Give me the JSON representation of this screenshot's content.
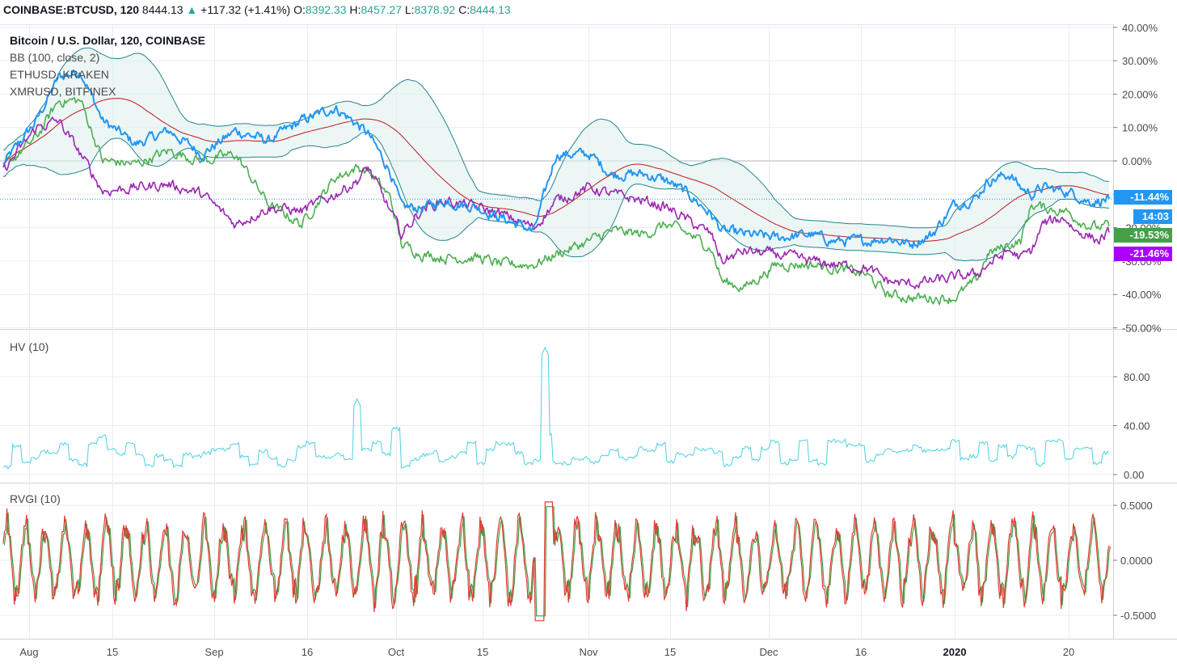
{
  "header": {
    "symbol": "COINBASE:BTCUSD, 120",
    "last": "8444.13",
    "up_arrow": "▲",
    "change": "+117.32 (+1.41%)",
    "open_label": "O:",
    "open": "8392.33",
    "high_label": "H:",
    "high": "8457.27",
    "low_label": "L:",
    "low": "8378.92",
    "close_label": "C:",
    "close": "8444.13"
  },
  "main_legend": {
    "title": "Bitcoin / U.S. Dollar, 120, COINBASE",
    "lines": [
      "BB (100, close, 2)",
      "ETHUSD, KRAKEN",
      "XMRUSD, BITFINEX"
    ]
  },
  "hv_legend": "HV (10)",
  "rvgi_legend": "RVGI (10)",
  "price_tags": [
    {
      "label": "-11.44%",
      "color": "#2196f3"
    },
    {
      "label": "14:03",
      "color": "#2196f3"
    },
    {
      "label": "-19.53%",
      "color": "#43a047"
    },
    {
      "label": "-21.46%",
      "color": "#aa00ff"
    }
  ],
  "colors": {
    "btc": "#2196f3",
    "eth": "#4caf50",
    "xmr": "#9c27b0",
    "bb_basis": "#b71c1c",
    "bb_band": "#22848c",
    "bb_fill": "#dff0ef",
    "hv": "#4dd0e1",
    "rvgi": "#e53935",
    "rvgi_signal": "#43a047",
    "grid": "#e9ecf1",
    "axis_text": "#4a4a4a"
  },
  "chart_data": [
    {
      "type": "line",
      "title": "Bitcoin / U.S. Dollar, 120, COINBASE",
      "unit": "%",
      "ylim": [
        -50,
        40
      ],
      "yticks": [
        "40.00%",
        "30.00%",
        "20.00%",
        "10.00%",
        "0.00%",
        "-10.00%",
        "-20.00%",
        "-30.00%",
        "-40.00%",
        "-50.00%"
      ],
      "x_ticks": [
        "Aug",
        "15",
        "Sep",
        "16",
        "Oct",
        "15",
        "Nov",
        "15",
        "Dec",
        "16",
        "2020",
        "20"
      ],
      "x_range": [
        0,
        100
      ],
      "x": [
        0,
        3,
        5,
        7,
        9,
        12,
        15,
        18,
        21,
        24,
        27,
        30,
        32,
        33,
        35,
        36,
        38,
        40,
        43,
        45,
        48,
        50,
        53,
        55,
        58,
        60,
        62,
        64,
        65,
        67,
        70,
        73,
        75,
        78,
        80,
        82,
        84,
        86,
        88,
        89,
        91,
        92,
        93,
        94,
        96,
        97,
        98,
        99,
        100
      ],
      "series": [
        {
          "name": "Bitcoin / U.S. Dollar",
          "color_key": "btc",
          "values": [
            -1,
            12,
            25,
            27,
            12,
            5,
            9,
            2,
            9,
            6,
            12,
            16,
            11,
            8,
            -3,
            -14,
            -14,
            -12,
            -14,
            -17,
            -21,
            2,
            2,
            -4,
            -4,
            -6,
            -10,
            -16,
            -21,
            -22,
            -23,
            -22,
            -24,
            -24,
            -23,
            -25,
            -22,
            -13,
            -11,
            -6,
            -4,
            -8,
            -10,
            -8,
            -9,
            -10,
            -12,
            -12,
            -11.44
          ]
        },
        {
          "name": "ETHUSD, KRAKEN",
          "color_key": "eth",
          "values": [
            -2,
            7,
            18,
            18,
            0,
            -1,
            3,
            0,
            2,
            -13,
            -19,
            -5,
            -2,
            -3,
            -11,
            -25,
            -28,
            -29,
            -29,
            -31,
            -31,
            -28,
            -24,
            -21,
            -22,
            -19,
            -22,
            -26,
            -36,
            -38,
            -31,
            -31,
            -32,
            -34,
            -40,
            -41,
            -41,
            -41,
            -36,
            -28,
            -25,
            -24,
            -13,
            -14,
            -15,
            -17,
            -19,
            -20,
            -19.53
          ]
        },
        {
          "name": "XMRUSD, BITFINEX",
          "color_key": "xmr",
          "values": [
            -3,
            10,
            12,
            2,
            -9,
            -8,
            -7,
            -10,
            -19,
            -14,
            -15,
            -10,
            -6,
            -2,
            -15,
            -22,
            -14,
            -12,
            -14,
            -16,
            -20,
            -12,
            -8,
            -10,
            -12,
            -14,
            -18,
            -22,
            -30,
            -27,
            -28,
            -30,
            -31,
            -32,
            -36,
            -37,
            -36,
            -35,
            -34,
            -31,
            -27,
            -29,
            -27,
            -19,
            -17,
            -21,
            -22,
            -24,
            -21.46
          ]
        }
      ]
    },
    {
      "type": "line",
      "title": "HV (10)",
      "ylim": [
        0,
        100
      ],
      "yticks": [
        "80.00",
        "40.00",
        "0.00"
      ],
      "peaks": [
        {
          "x": 32,
          "value": 62
        },
        {
          "x": 49,
          "value": 104
        }
      ]
    },
    {
      "type": "line",
      "title": "RVGI (10)",
      "ylim": [
        -0.5,
        0.5
      ],
      "yticks": [
        "0.5000",
        "0.0000",
        "-0.5000"
      ]
    }
  ]
}
